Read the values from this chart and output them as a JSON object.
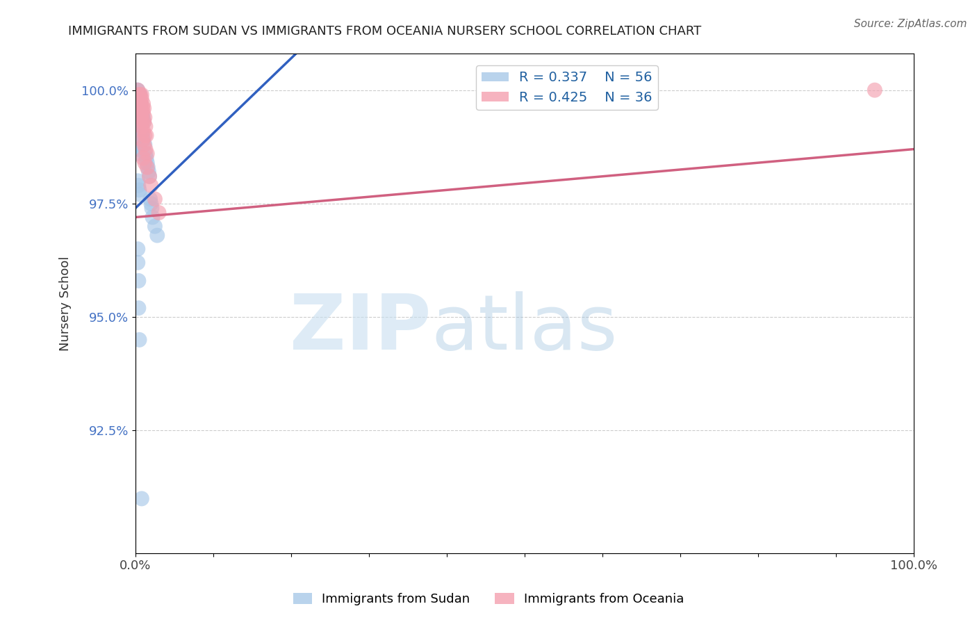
{
  "title": "IMMIGRANTS FROM SUDAN VS IMMIGRANTS FROM OCEANIA NURSERY SCHOOL CORRELATION CHART",
  "source": "Source: ZipAtlas.com",
  "ylabel_label": "Nursery School",
  "xmin": 0.0,
  "xmax": 1.0,
  "ymin": 0.898,
  "ymax": 1.008,
  "yticks": [
    0.925,
    0.95,
    0.975,
    1.0
  ],
  "ytick_labels": [
    "92.5%",
    "95.0%",
    "97.5%",
    "100.0%"
  ],
  "xticks": [
    0.0,
    0.1,
    0.2,
    0.3,
    0.4,
    0.5,
    0.6,
    0.7,
    0.8,
    0.9,
    1.0
  ],
  "sudan_R": 0.337,
  "sudan_N": 56,
  "oceania_R": 0.425,
  "oceania_N": 36,
  "sudan_color": "#a8c8e8",
  "oceania_color": "#f4a0b0",
  "sudan_line_color": "#3060c0",
  "oceania_line_color": "#d06080",
  "background_color": "#ffffff",
  "sudan_x": [
    0.002,
    0.003,
    0.004,
    0.005,
    0.006,
    0.003,
    0.004,
    0.005,
    0.006,
    0.007,
    0.002,
    0.003,
    0.004,
    0.005,
    0.006,
    0.007,
    0.008,
    0.009,
    0.01,
    0.011,
    0.002,
    0.003,
    0.004,
    0.005,
    0.006,
    0.007,
    0.008,
    0.009,
    0.01,
    0.012,
    0.002,
    0.003,
    0.004,
    0.005,
    0.013,
    0.014,
    0.015,
    0.016,
    0.017,
    0.018,
    0.003,
    0.004,
    0.005,
    0.006,
    0.019,
    0.02,
    0.021,
    0.022,
    0.025,
    0.028,
    0.003,
    0.003,
    0.004,
    0.004,
    0.005,
    0.008
  ],
  "sudan_y": [
    1.0,
    1.0,
    0.999,
    0.999,
    0.999,
    0.998,
    0.998,
    0.998,
    0.997,
    0.997,
    0.997,
    0.996,
    0.996,
    0.996,
    0.995,
    0.995,
    0.995,
    0.994,
    0.994,
    0.993,
    0.993,
    0.993,
    0.992,
    0.992,
    0.991,
    0.991,
    0.99,
    0.99,
    0.989,
    0.988,
    0.988,
    0.987,
    0.987,
    0.986,
    0.986,
    0.985,
    0.984,
    0.983,
    0.982,
    0.981,
    0.98,
    0.979,
    0.978,
    0.977,
    0.976,
    0.975,
    0.974,
    0.972,
    0.97,
    0.968,
    0.965,
    0.962,
    0.958,
    0.952,
    0.945,
    0.91
  ],
  "oceania_x": [
    0.003,
    0.005,
    0.006,
    0.008,
    0.004,
    0.006,
    0.008,
    0.01,
    0.005,
    0.007,
    0.009,
    0.011,
    0.006,
    0.008,
    0.01,
    0.012,
    0.007,
    0.009,
    0.011,
    0.013,
    0.008,
    0.01,
    0.012,
    0.014,
    0.009,
    0.011,
    0.013,
    0.015,
    0.01,
    0.012,
    0.015,
    0.018,
    0.02,
    0.025,
    0.03,
    0.95
  ],
  "oceania_y": [
    1.0,
    0.999,
    0.999,
    0.999,
    0.998,
    0.998,
    0.998,
    0.997,
    0.997,
    0.997,
    0.996,
    0.996,
    0.996,
    0.995,
    0.995,
    0.994,
    0.994,
    0.993,
    0.993,
    0.992,
    0.992,
    0.991,
    0.99,
    0.99,
    0.989,
    0.988,
    0.987,
    0.986,
    0.985,
    0.984,
    0.983,
    0.981,
    0.979,
    0.976,
    0.973,
    1.0
  ]
}
